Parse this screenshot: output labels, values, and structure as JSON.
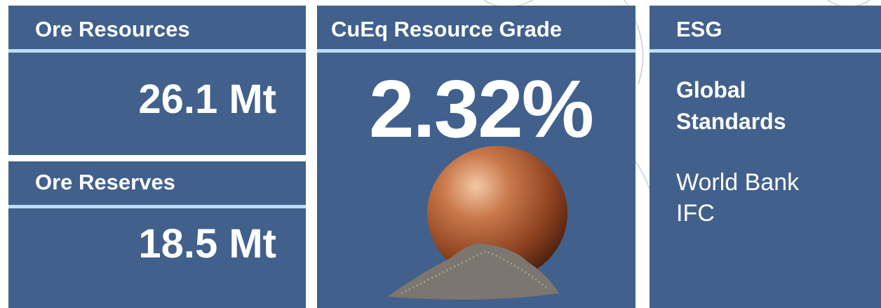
{
  "panels": [
    {
      "title": "Ore Resources",
      "value": "26.1 Mt"
    },
    {
      "title": "Ore Reserves",
      "value": "18.5 Mt"
    },
    {
      "title": "CuEq Resource Grade",
      "value": "2.32%"
    },
    {
      "title": "ESG",
      "heading": "Global Standards",
      "lines": [
        "World Bank",
        "IFC"
      ]
    }
  ]
}
